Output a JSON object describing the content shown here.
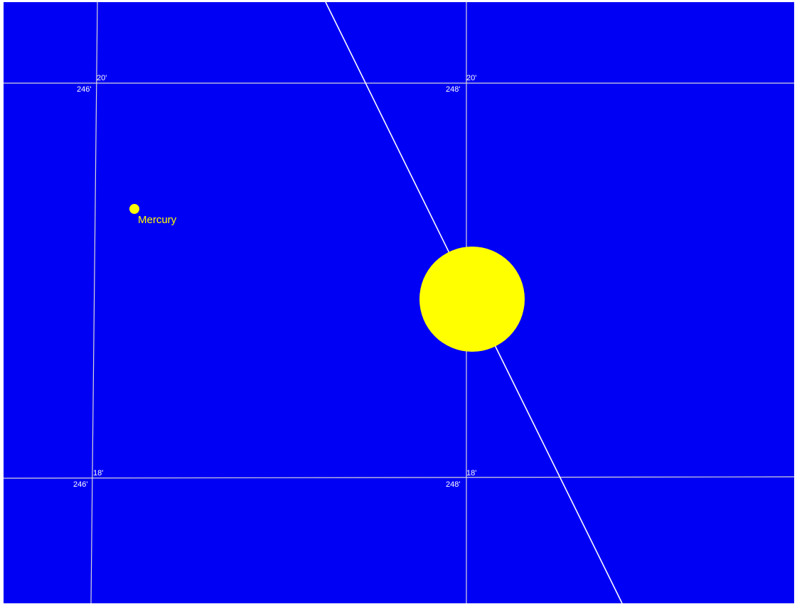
{
  "colors": {
    "sky": "#0000f5",
    "grid": "#d8d8d8",
    "ecliptic": "#ffffff",
    "sun": "#ffff00",
    "planet": "#ffff00",
    "label": "#ffffff",
    "planet_label": "#ffff00"
  },
  "grid_labels": {
    "dec_upper_left": "20'",
    "ra_upper_left": "246'",
    "dec_upper_right": "20'",
    "ra_upper_right": "248'",
    "dec_lower_left": "18'",
    "ra_lower_left": "246'",
    "dec_lower_right": "18'",
    "ra_lower_right": "248'"
  },
  "objects": {
    "mercury": {
      "name": "Mercury"
    }
  }
}
